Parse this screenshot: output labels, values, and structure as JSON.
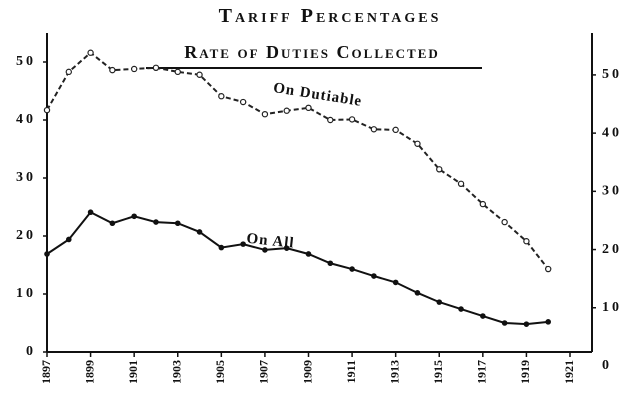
{
  "chart_data": {
    "type": "line",
    "title": "Tariff Percentages",
    "subtitle": "Rate of Duties Collected",
    "x": [
      1897,
      1898,
      1899,
      1900,
      1901,
      1902,
      1903,
      1904,
      1905,
      1906,
      1907,
      1908,
      1909,
      1910,
      1911,
      1912,
      1913,
      1914,
      1915,
      1916,
      1917,
      1918,
      1919,
      1920
    ],
    "series": [
      {
        "name": "On Dutiable",
        "color": "#222222",
        "dashed": true,
        "values": [
          41.7,
          48.3,
          51.6,
          48.6,
          48.8,
          49.0,
          48.3,
          47.8,
          44.1,
          43.1,
          41.0,
          41.6,
          42.1,
          40.0,
          40.1,
          38.4,
          38.3,
          35.9,
          31.5,
          29.0,
          25.5,
          22.4,
          19.1,
          14.3
        ]
      },
      {
        "name": "On All",
        "color": "#111111",
        "dashed": false,
        "values": [
          16.9,
          19.4,
          24.1,
          22.2,
          23.4,
          22.4,
          22.2,
          20.7,
          18.0,
          18.6,
          17.6,
          17.9,
          16.9,
          15.3,
          14.3,
          13.1,
          12.0,
          10.2,
          8.6,
          7.4,
          6.2,
          5.0,
          4.8,
          5.2
        ]
      }
    ],
    "xlim": [
      1897,
      1921
    ],
    "xticks": [
      1897,
      1899,
      1901,
      1903,
      1905,
      1907,
      1909,
      1911,
      1913,
      1915,
      1917,
      1919,
      1921
    ],
    "ylim": [
      0,
      55
    ],
    "yticks": [
      0,
      10,
      20,
      30,
      40,
      50
    ],
    "y2lim": [
      2.4,
      57.2
    ],
    "y2ticks": [
      0,
      10,
      20,
      30,
      40,
      50
    ]
  }
}
